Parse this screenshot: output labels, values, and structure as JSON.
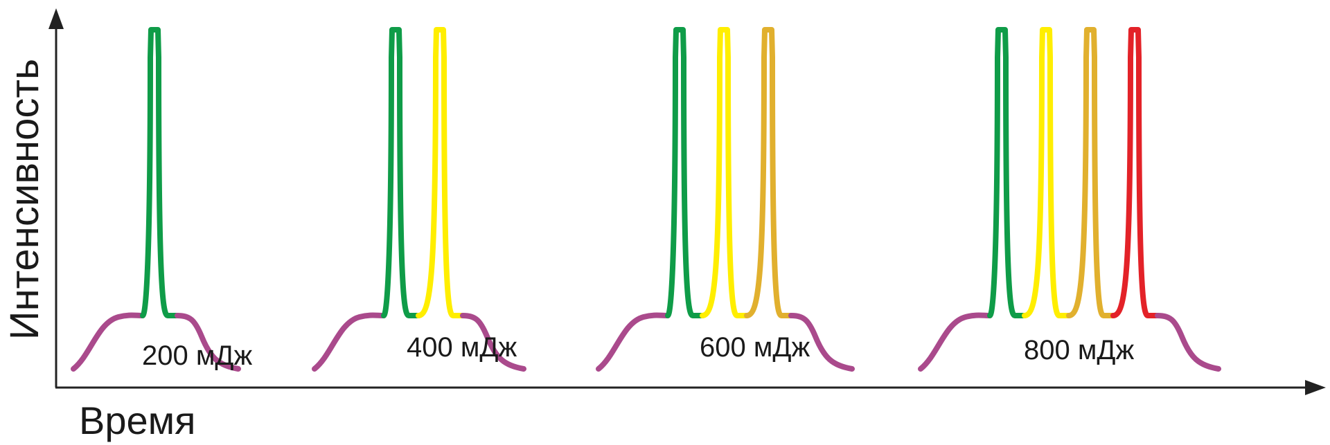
{
  "axes": {
    "y_label": "Интенсивность",
    "x_label": "Время"
  },
  "colors": {
    "axis": "#222222",
    "background": "#ffffff",
    "shoulder": "#aa4a8c",
    "peak_1": "#0f9c48",
    "peak_2": "#ffee00",
    "peak_3": "#e1b02e",
    "peak_4": "#e32228"
  },
  "groups": [
    {
      "label": "200 мДж",
      "peaks": [
        "peak_1"
      ]
    },
    {
      "label": "400 мДж",
      "peaks": [
        "peak_1",
        "peak_2"
      ]
    },
    {
      "label": "600 мДж",
      "peaks": [
        "peak_1",
        "peak_2",
        "peak_3"
      ]
    },
    {
      "label": "800 мДж",
      "peaks": [
        "peak_1",
        "peak_2",
        "peak_3",
        "peak_4"
      ]
    }
  ]
}
